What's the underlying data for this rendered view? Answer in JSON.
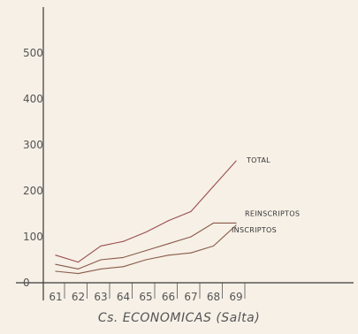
{
  "chart_data": {
    "type": "line",
    "title": "",
    "caption": "Cs. ECONOMICAS (Salta)",
    "xlabel": "",
    "ylabel": "",
    "x": [
      "61",
      "62",
      "63",
      "64",
      "65",
      "66",
      "67",
      "68",
      "69"
    ],
    "yticks": [
      0,
      100,
      200,
      300,
      400,
      500
    ],
    "ylim": [
      0,
      560
    ],
    "grid": false,
    "series": [
      {
        "name": "TOTAL",
        "color": "#9a4d4d",
        "values": [
          60,
          45,
          80,
          90,
          110,
          135,
          155,
          210,
          265
        ]
      },
      {
        "name": "REINSCRIPTOS",
        "color": "#8a5a4a",
        "values": [
          40,
          30,
          50,
          55,
          70,
          85,
          100,
          130,
          130
        ]
      },
      {
        "name": "INSCRIPTOS",
        "color": "#8a5a4a",
        "values": [
          25,
          20,
          30,
          35,
          50,
          60,
          65,
          80,
          125
        ]
      }
    ]
  }
}
